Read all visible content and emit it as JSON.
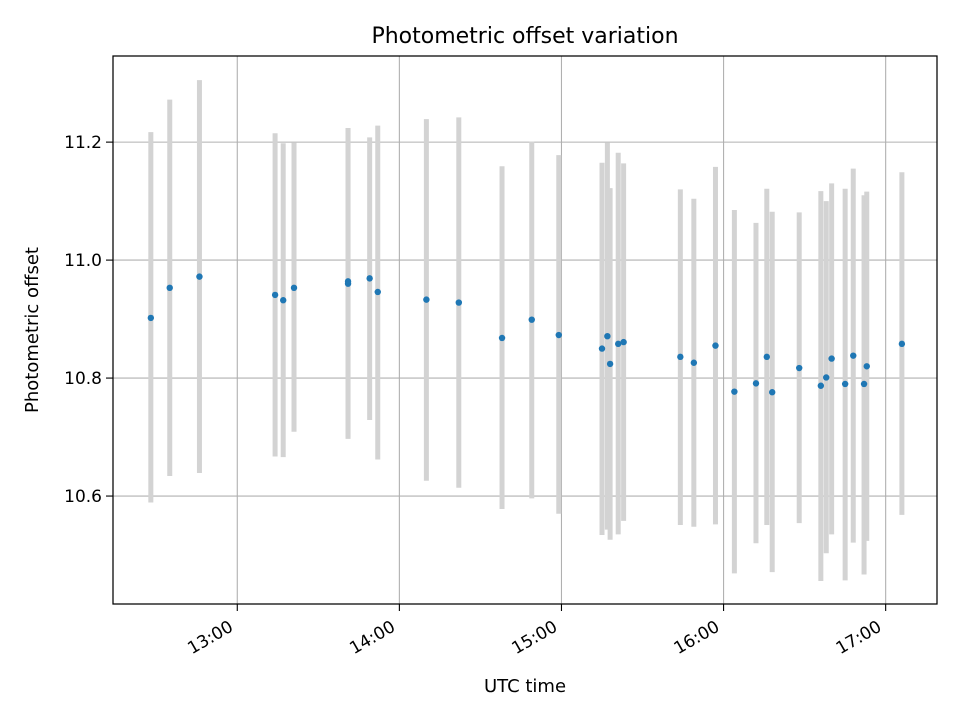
{
  "chart_data": {
    "type": "scatter",
    "title": "Photometric offset variation",
    "xlabel": "UTC time",
    "ylabel": "Photometric offset",
    "x_unit": "UTC time (HH:MM)",
    "xlim": [
      "12:14",
      "17:19"
    ],
    "ylim": [
      10.417,
      11.346
    ],
    "x_ticks": [
      "13:00",
      "14:00",
      "15:00",
      "16:00",
      "17:00"
    ],
    "y_ticks": [
      "10.6",
      "10.8",
      "11.0",
      "11.2"
    ],
    "grid": true,
    "legend": "none",
    "marker_color": "#1f77b4",
    "errorbar_color": "#d3d3d3",
    "points": [
      {
        "t": "12:28",
        "y": 10.902,
        "lo": 10.589,
        "hi": 11.217
      },
      {
        "t": "12:35",
        "y": 10.953,
        "lo": 10.634,
        "hi": 11.272
      },
      {
        "t": "12:46",
        "y": 10.972,
        "lo": 10.639,
        "hi": 11.305
      },
      {
        "t": "13:14",
        "y": 10.941,
        "lo": 10.667,
        "hi": 11.215
      },
      {
        "t": "13:17",
        "y": 10.932,
        "lo": 10.666,
        "hi": 11.198
      },
      {
        "t": "13:21",
        "y": 10.953,
        "lo": 10.709,
        "hi": 11.199
      },
      {
        "t": "13:41",
        "y": 10.96,
        "lo": 10.697,
        "hi": 11.224
      },
      {
        "t": "13:41",
        "y": 10.964,
        "lo": 10.699,
        "hi": 11.224
      },
      {
        "t": "13:49",
        "y": 10.969,
        "lo": 10.729,
        "hi": 11.208
      },
      {
        "t": "13:52",
        "y": 10.946,
        "lo": 10.662,
        "hi": 11.228
      },
      {
        "t": "14:10",
        "y": 10.933,
        "lo": 10.626,
        "hi": 11.239
      },
      {
        "t": "14:22",
        "y": 10.928,
        "lo": 10.614,
        "hi": 11.242
      },
      {
        "t": "14:38",
        "y": 10.868,
        "lo": 10.578,
        "hi": 11.159
      },
      {
        "t": "14:49",
        "y": 10.899,
        "lo": 10.596,
        "hi": 11.201
      },
      {
        "t": "14:59",
        "y": 10.873,
        "lo": 10.57,
        "hi": 11.178
      },
      {
        "t": "15:15",
        "y": 10.85,
        "lo": 10.534,
        "hi": 11.165
      },
      {
        "t": "15:17",
        "y": 10.871,
        "lo": 10.543,
        "hi": 11.199
      },
      {
        "t": "15:18",
        "y": 10.824,
        "lo": 10.526,
        "hi": 11.122
      },
      {
        "t": "15:21",
        "y": 10.858,
        "lo": 10.535,
        "hi": 11.182
      },
      {
        "t": "15:23",
        "y": 10.861,
        "lo": 10.558,
        "hi": 11.164
      },
      {
        "t": "15:44",
        "y": 10.836,
        "lo": 10.551,
        "hi": 11.12
      },
      {
        "t": "15:49",
        "y": 10.826,
        "lo": 10.548,
        "hi": 11.104
      },
      {
        "t": "15:57",
        "y": 10.855,
        "lo": 10.552,
        "hi": 11.158
      },
      {
        "t": "16:04",
        "y": 10.777,
        "lo": 10.469,
        "hi": 11.085
      },
      {
        "t": "16:12",
        "y": 10.791,
        "lo": 10.52,
        "hi": 11.063
      },
      {
        "t": "16:16",
        "y": 10.836,
        "lo": 10.551,
        "hi": 11.121
      },
      {
        "t": "16:18",
        "y": 10.776,
        "lo": 10.471,
        "hi": 11.082
      },
      {
        "t": "16:28",
        "y": 10.817,
        "lo": 10.554,
        "hi": 11.081
      },
      {
        "t": "16:36",
        "y": 10.787,
        "lo": 10.456,
        "hi": 11.117
      },
      {
        "t": "16:38",
        "y": 10.801,
        "lo": 10.503,
        "hi": 11.1
      },
      {
        "t": "16:40",
        "y": 10.833,
        "lo": 10.535,
        "hi": 11.13
      },
      {
        "t": "16:45",
        "y": 10.79,
        "lo": 10.457,
        "hi": 11.121
      },
      {
        "t": "16:48",
        "y": 10.838,
        "lo": 10.521,
        "hi": 11.155
      },
      {
        "t": "16:52",
        "y": 10.79,
        "lo": 10.467,
        "hi": 11.11
      },
      {
        "t": "16:53",
        "y": 10.82,
        "lo": 10.524,
        "hi": 11.116
      },
      {
        "t": "17:06",
        "y": 10.858,
        "lo": 10.568,
        "hi": 11.149
      }
    ]
  }
}
